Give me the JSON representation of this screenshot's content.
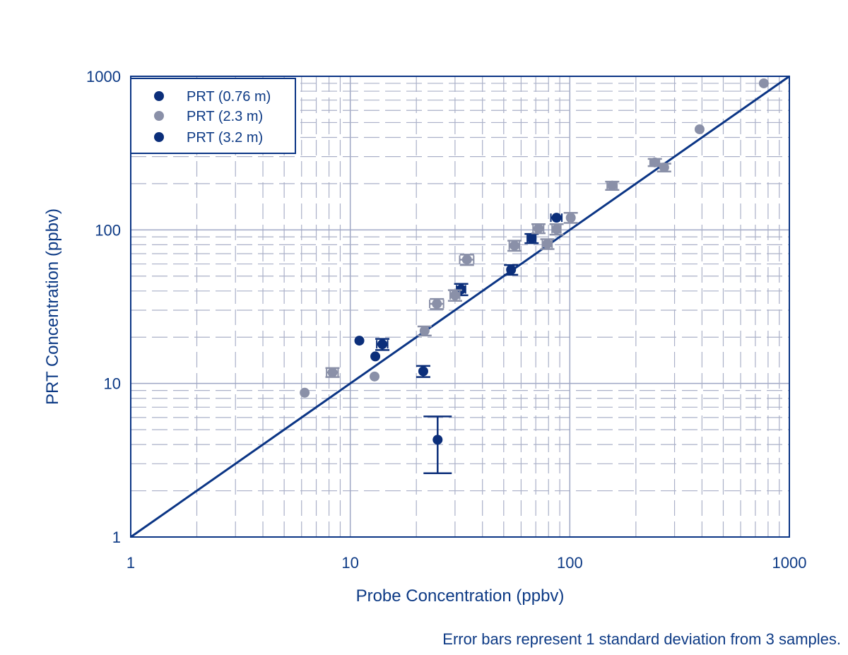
{
  "chart_data": {
    "type": "scatter",
    "xlabel": "Probe Concentration (ppbv)",
    "ylabel": "PRT Concentration (ppbv)",
    "xscale": "log",
    "yscale": "log",
    "xlim": [
      1,
      1000
    ],
    "ylim": [
      1,
      1000
    ],
    "xticks": [
      "1",
      "10",
      "100",
      "1000"
    ],
    "yticks": [
      "1",
      "10",
      "100",
      "1000"
    ],
    "grid": true,
    "legend_placement": "top-left",
    "reference_line": {
      "type": "1:1",
      "from": [
        1,
        1
      ],
      "to": [
        1000,
        1000
      ]
    },
    "caption": "Error bars represent 1 standard deviation from 3 samples.",
    "series": [
      {
        "name": "PRT (0.76 m)",
        "color": "#0b2e7a",
        "points": [
          {
            "x": 11,
            "y": 19
          },
          {
            "x": 14,
            "y": 18,
            "yerr": 1.5,
            "xerr": 0.8
          },
          {
            "x": 13,
            "y": 15
          },
          {
            "x": 21.5,
            "y": 12,
            "yerr": 1
          },
          {
            "x": 25,
            "y": 4.3,
            "yerr_low": 1.7,
            "yerr_high": 1.8
          },
          {
            "x": 32,
            "y": 41,
            "yerr": 3.5,
            "xerr": 1.5
          },
          {
            "x": 54,
            "y": 55,
            "yerr": 4
          },
          {
            "x": 67,
            "y": 88,
            "yerr": 6,
            "xerr": 3
          },
          {
            "x": 87,
            "y": 120,
            "xerr": 5
          }
        ]
      },
      {
        "name": "PRT (2.3 m)",
        "color": "#8a90a8",
        "points": [
          {
            "x": 6.2,
            "y": 8.7
          },
          {
            "x": 8.3,
            "y": 11.8,
            "yerr": 0.8,
            "xerr": 0.5
          },
          {
            "x": 12.9,
            "y": 11.1
          },
          {
            "x": 21.8,
            "y": 22,
            "yerr": 1.5
          },
          {
            "x": 24.8,
            "y": 33,
            "yerr": 2.5,
            "xerr": 1.8
          },
          {
            "x": 30,
            "y": 37.5,
            "yerr": 3,
            "xerr": 1.5
          },
          {
            "x": 34,
            "y": 64,
            "yerr": 5,
            "xerr": 2.5
          },
          {
            "x": 56,
            "y": 79,
            "yerr": 6,
            "xerr": 3
          },
          {
            "x": 72,
            "y": 102,
            "yerr": 7,
            "xerr": 4
          },
          {
            "x": 79,
            "y": 81,
            "yerr": 6,
            "xerr": 4
          },
          {
            "x": 87,
            "y": 101,
            "yerr": 8,
            "xerr": 4
          },
          {
            "x": 101,
            "y": 120,
            "yerr": 9
          },
          {
            "x": 156,
            "y": 194,
            "yerr": 12,
            "xerr": 8
          },
          {
            "x": 244,
            "y": 275,
            "yerr": 15,
            "xerr": 12
          },
          {
            "x": 269,
            "y": 255,
            "yerr": 15
          },
          {
            "x": 390,
            "y": 452
          },
          {
            "x": 765,
            "y": 900
          }
        ]
      },
      {
        "name": "PRT (3.2 m)",
        "color": "#0b2e7a",
        "points": []
      }
    ]
  }
}
